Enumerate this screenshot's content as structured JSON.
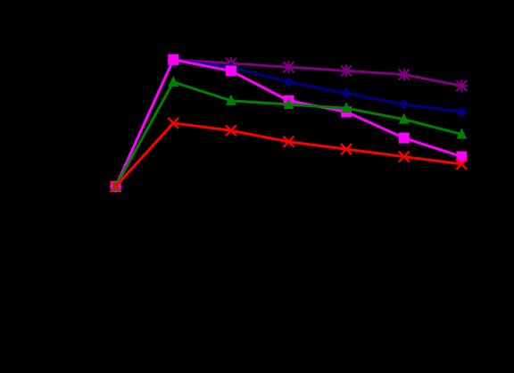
{
  "chart_data": {
    "type": "line",
    "title": "",
    "xlabel": "",
    "ylabel": "",
    "x": [
      1,
      2,
      3,
      4,
      5,
      6,
      7
    ],
    "xlim": [
      0,
      8
    ],
    "ylim": [
      0,
      1
    ],
    "grid": false,
    "background": "#000000",
    "series": [
      {
        "color": "#800080",
        "marker": "asterisk",
        "values": [
          0.5,
          0.84,
          0.83,
          0.82,
          0.81,
          0.8,
          0.77
        ]
      },
      {
        "color": "#000080",
        "marker": "diamond",
        "values": [
          0.5,
          0.84,
          0.82,
          0.78,
          0.75,
          0.72,
          0.7
        ]
      },
      {
        "color": "#FF00FF",
        "marker": "square",
        "values": [
          0.5,
          0.84,
          0.81,
          0.73,
          0.7,
          0.63,
          0.58
        ]
      },
      {
        "color": "#008000",
        "marker": "triangle",
        "values": [
          0.5,
          0.78,
          0.73,
          0.72,
          0.71,
          0.68,
          0.64
        ]
      },
      {
        "color": "#FF0000",
        "marker": "x",
        "values": [
          0.5,
          0.67,
          0.65,
          0.62,
          0.6,
          0.58,
          0.56
        ]
      }
    ]
  }
}
